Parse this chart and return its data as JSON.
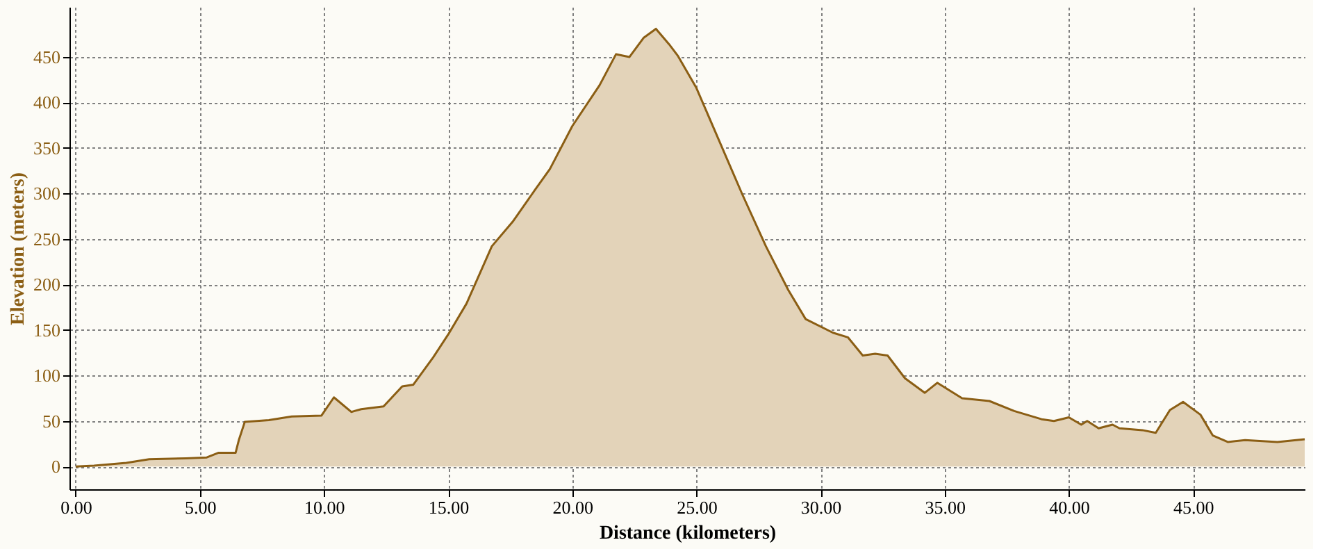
{
  "chart_data": {
    "type": "area",
    "xlabel": "Distance (kilometers)",
    "ylabel": "Elevation (meters)",
    "x": [
      0,
      0.74,
      2.04,
      2.96,
      4.44,
      5.28,
      5.74,
      6.44,
      6.57,
      6.81,
      7.78,
      8.7,
      9.9,
      10.4,
      11.1,
      11.5,
      12.4,
      13.15,
      13.6,
      14.4,
      15,
      15.74,
      16.76,
      17.6,
      18.5,
      19.1,
      20,
      21.1,
      21.76,
      22.3,
      22.87,
      23.37,
      23.9,
      24.26,
      25,
      25.9,
      26.85,
      27.8,
      28.7,
      29.4,
      30.5,
      31.1,
      31.7,
      32.2,
      32.7,
      33.4,
      34.2,
      34.7,
      35.7,
      36.8,
      37.8,
      38.9,
      39.4,
      40,
      40.5,
      40.74,
      41.2,
      41.76,
      42.04,
      42.96,
      43.5,
      44.07,
      44.6,
      45.3,
      45.8,
      46.4,
      47.1,
      48.4,
      49.5
    ],
    "series": [
      {
        "color": "#8b5e14",
        "values": [
          0,
          1,
          4,
          8,
          9,
          10,
          15,
          15,
          29,
          49,
          51,
          55,
          56,
          76,
          60,
          63,
          66,
          88,
          90,
          120,
          145,
          179,
          242,
          269,
          304,
          327,
          374,
          419,
          453,
          450,
          471,
          481,
          464,
          451,
          416,
          359,
          299,
          242,
          194,
          162,
          147,
          142,
          122,
          124,
          122,
          97,
          81,
          92,
          75,
          72,
          61,
          52,
          50,
          54,
          46,
          50,
          42,
          46,
          42,
          40,
          37,
          62,
          71,
          57,
          34,
          27,
          29,
          27,
          30
        ]
      }
    ],
    "xlim": [
      -0.25,
      49.5
    ],
    "ylim": [
      -25,
      505
    ],
    "xticks": [
      {
        "value": 0,
        "label": "0.00"
      },
      {
        "value": 5,
        "label": "5.00"
      },
      {
        "value": 10,
        "label": "10.00"
      },
      {
        "value": 15,
        "label": "15.00"
      },
      {
        "value": 20,
        "label": "20.00"
      },
      {
        "value": 25,
        "label": "25.00"
      },
      {
        "value": 30,
        "label": "30.00"
      },
      {
        "value": 35,
        "label": "35.00"
      },
      {
        "value": 40,
        "label": "40.00"
      },
      {
        "value": 45,
        "label": "45.00"
      }
    ],
    "yticks": [
      0,
      50,
      100,
      150,
      200,
      250,
      300,
      350,
      400,
      450
    ],
    "grid": true
  }
}
